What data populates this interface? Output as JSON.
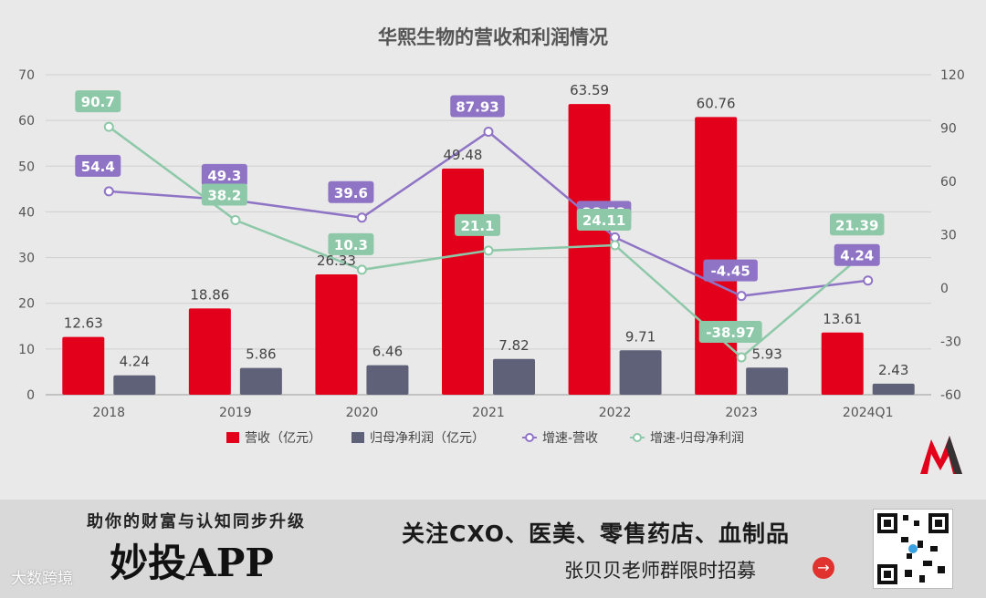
{
  "chart_data": {
    "type": "bar+line",
    "title": "华熙生物的营收和利润情况",
    "categories": [
      "2018",
      "2019",
      "2020",
      "2021",
      "2022",
      "2023",
      "2024Q1"
    ],
    "bar_series": [
      {
        "name": "营收（亿元）",
        "color": "#e3001b",
        "values": [
          12.63,
          18.86,
          26.33,
          49.48,
          63.59,
          60.76,
          13.61
        ],
        "labels": [
          "12.63",
          "18.86",
          "26.33",
          "49.48",
          "63.59",
          "60.76",
          "13.61"
        ]
      },
      {
        "name": "归母净利润（亿元）",
        "color": "#5f6178",
        "values": [
          4.24,
          5.86,
          6.46,
          7.82,
          9.71,
          5.93,
          2.43
        ],
        "labels": [
          "4.24",
          "5.86",
          "6.46",
          "7.82",
          "9.71",
          "5.93",
          "2.43"
        ]
      }
    ],
    "line_series": [
      {
        "name": "增速-营收",
        "color": "#8f74c6",
        "values": [
          54.4,
          49.3,
          39.6,
          87.93,
          28.53,
          -4.45,
          4.24
        ],
        "labels": [
          "54.4",
          "49.3",
          "39.6",
          "87.93",
          "28.53",
          "-4.45",
          "4.24"
        ]
      },
      {
        "name": "增速-归母净利润",
        "color": "#8dc8a8",
        "values": [
          90.7,
          38.2,
          10.3,
          21.1,
          24.11,
          -38.97,
          21.39
        ],
        "labels": [
          "90.7",
          "38.2",
          "10.3",
          "21.1",
          "24.11",
          "-38.97",
          "21.39"
        ]
      }
    ],
    "y_left": {
      "min": 0,
      "max": 70,
      "ticks": [
        "0",
        "10",
        "20",
        "30",
        "40",
        "50",
        "60",
        "70"
      ]
    },
    "y_right": {
      "min": -60,
      "max": 120,
      "ticks": [
        "-60",
        "-30",
        "0",
        "30",
        "60",
        "90",
        "120"
      ]
    },
    "grid": true,
    "legend_position": "bottom"
  },
  "banner": {
    "slogan": "助你的财富与认知同步升级",
    "app_name": "妙投APP",
    "topics": "关注CXO、医美、零售药店、血制品",
    "recruit": "张贝贝老师群限时招募",
    "arrow_icon": "→",
    "watermark": "大数跨境"
  }
}
